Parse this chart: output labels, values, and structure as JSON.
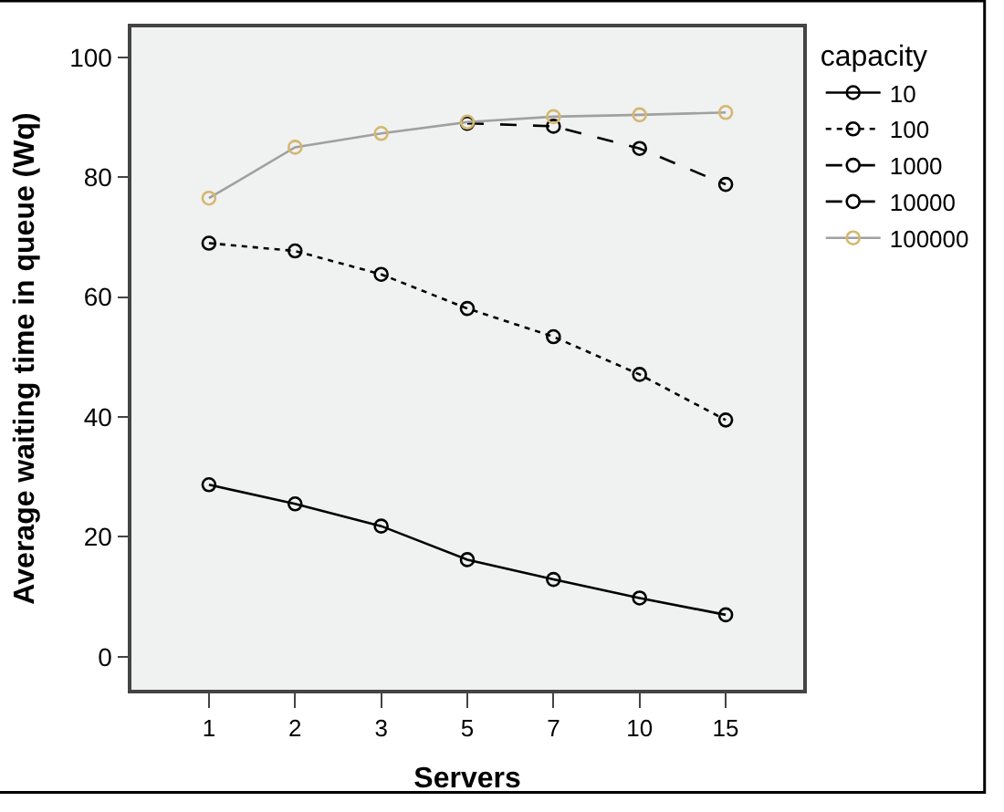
{
  "chart_data": {
    "type": "line",
    "xlabel": "Servers",
    "ylabel": "Average waiting time in queue (Wq)",
    "legend_title": "capacity",
    "categories": [
      "1",
      "2",
      "3",
      "5",
      "7",
      "10",
      "15"
    ],
    "series": [
      {
        "name": "10",
        "color": "#000000",
        "line_style": "solid",
        "values": [
          28.7,
          25.5,
          21.8,
          16.2,
          12.9,
          9.8,
          7.0
        ]
      },
      {
        "name": "100",
        "color": "#000000",
        "line_style": "dotted",
        "values": [
          69.0,
          67.7,
          63.8,
          58.1,
          53.4,
          47.1,
          39.5
        ]
      },
      {
        "name": "1000",
        "color": "#000000",
        "line_style": "dashed",
        "values": [
          null,
          null,
          null,
          89.0,
          88.5,
          84.8,
          78.8
        ]
      },
      {
        "name": "10000",
        "color": "#000000",
        "line_style": "dashed",
        "values": [
          null,
          null,
          null,
          null,
          null,
          null,
          null
        ]
      },
      {
        "name": "100000",
        "color": "#a0a0a0",
        "colors": [
          "#d4b870",
          "#d4b870",
          "#d4b870",
          "#d4b870",
          "#d4b870",
          "#d4b870",
          "#d4b870"
        ],
        "line_style": "solid",
        "values": [
          76.5,
          85.0,
          87.3,
          89.2,
          90.1,
          90.4,
          90.8
        ]
      }
    ],
    "ylim": [
      -5.5,
      105
    ],
    "yticks": [
      0,
      20,
      40,
      60,
      80,
      100
    ],
    "grid": false,
    "legend": "top right",
    "marker": "circle"
  }
}
